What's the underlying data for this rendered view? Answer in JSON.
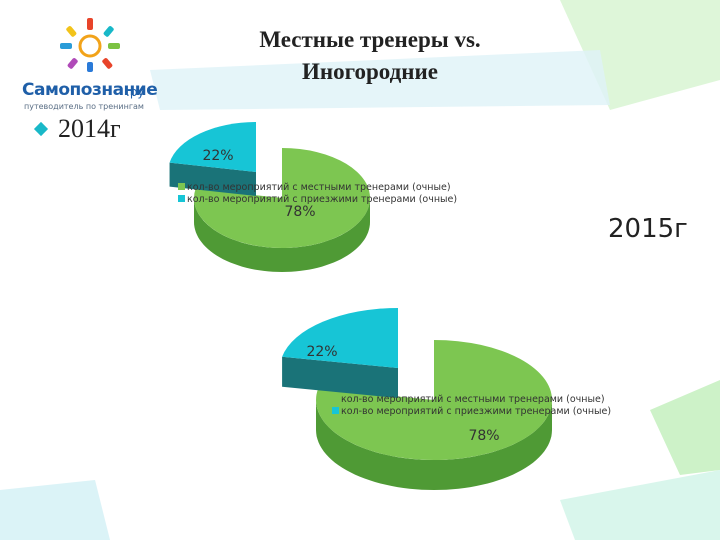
{
  "header": {
    "title_line1": "Местные тренеры vs.",
    "title_line2": "Иногородние"
  },
  "logo": {
    "name": "Самопознание",
    "tld": ".ру",
    "slogan": "путеводитель по тренингам"
  },
  "labels": {
    "year_2014": "2014г",
    "year_2015": "2015г"
  },
  "colors": {
    "local": "#7dc651",
    "local_side": "#4f9a35",
    "visiting": "#17c5d6",
    "visiting_side": "#1a7378",
    "accent_deco": "#a8e8a0"
  },
  "chart_data": [
    {
      "type": "pie",
      "title": "2014г",
      "labels": [
        "кол-во мероприятий с местными тренерами (очные)",
        "кол-во мероприятий с приезжими тренерами (очные)"
      ],
      "values": [
        78,
        22
      ],
      "data_labels": [
        "78%",
        "22%"
      ],
      "style": "3d",
      "legend_position": "center"
    },
    {
      "type": "pie",
      "title": "2015г",
      "labels": [
        "кол-во мероприятий с местными тренерами (очные)",
        "кол-во мероприятий с приезжими тренерами (очные)"
      ],
      "values": [
        78,
        22
      ],
      "data_labels": [
        "78%",
        "22%"
      ],
      "style": "3d",
      "legend_position": "center"
    }
  ]
}
